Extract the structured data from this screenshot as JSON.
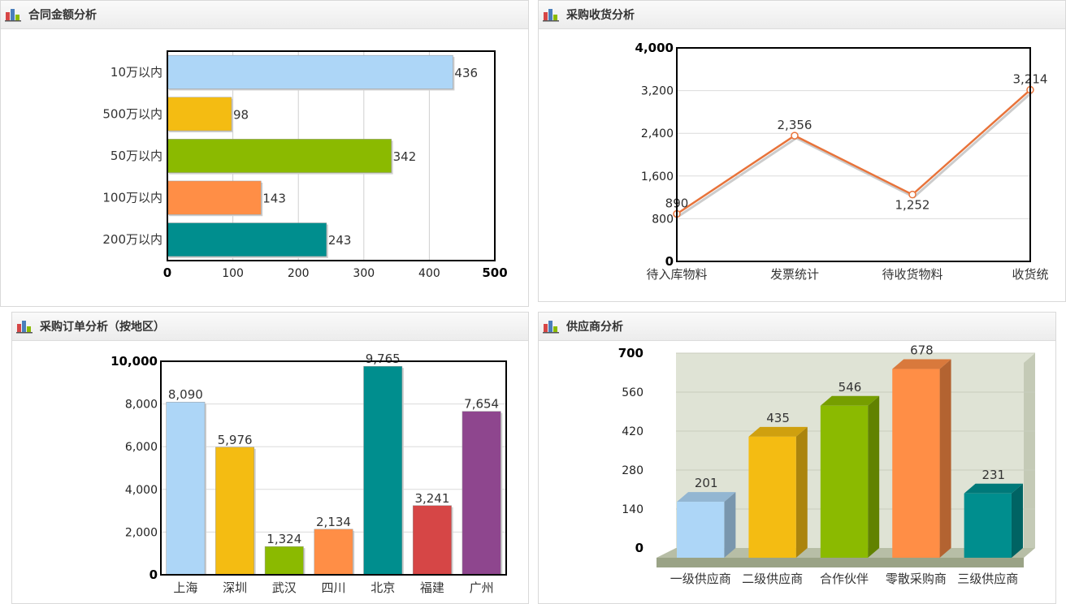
{
  "panels": {
    "p1": {
      "title": "合同金额分析"
    },
    "p2": {
      "title": "采购收货分析"
    },
    "p3": {
      "title": "采购订单分析（按地区）"
    },
    "p4": {
      "title": "供应商分析"
    }
  },
  "chart_data": [
    {
      "type": "bar",
      "orientation": "horizontal",
      "title": "合同金额分析",
      "categories": [
        "10万以内",
        "500万以内",
        "50万以内",
        "100万以内",
        "200万以内"
      ],
      "values": [
        436,
        98,
        342,
        143,
        243
      ],
      "colors": [
        "#add6f7",
        "#f4bc12",
        "#8bba00",
        "#ff8e46",
        "#008e8e"
      ],
      "xlim": [
        0,
        500
      ],
      "xticks": [
        0,
        100,
        200,
        300,
        400,
        500
      ],
      "grid": true
    },
    {
      "type": "line",
      "title": "采购收货分析",
      "categories": [
        "待入库物料",
        "发票统计",
        "待收货物料",
        "收货统"
      ],
      "values": [
        890,
        2356,
        1252,
        3214
      ],
      "value_labels": [
        "890",
        "2,356",
        "1,252",
        "3,214"
      ],
      "color": "#e8733a",
      "ylim": [
        0,
        4000
      ],
      "yticks": [
        0,
        800,
        1600,
        2400,
        3200,
        4000
      ],
      "grid": true
    },
    {
      "type": "bar",
      "title": "采购订单分析（按地区）",
      "categories": [
        "上海",
        "深圳",
        "武汉",
        "四川",
        "北京",
        "福建",
        "广州"
      ],
      "values": [
        8090,
        5976,
        1324,
        2134,
        9765,
        3241,
        7654
      ],
      "colors": [
        "#add6f7",
        "#f4bc12",
        "#8bba00",
        "#ff8e46",
        "#008e8e",
        "#d64646",
        "#8e468e"
      ],
      "ylim": [
        0,
        10000
      ],
      "yticks": [
        0,
        2000,
        4000,
        6000,
        8000,
        10000
      ],
      "grid": true
    },
    {
      "type": "bar",
      "style": "3d",
      "title": "供应商分析",
      "categories": [
        "一级供应商",
        "二级供应商",
        "合作伙伴",
        "零散采购商",
        "三级供应商"
      ],
      "values": [
        201,
        435,
        546,
        678,
        231
      ],
      "colors": [
        "#add6f7",
        "#f4bc12",
        "#8bba00",
        "#ff8e46",
        "#008e8e"
      ],
      "ylim": [
        0,
        700
      ],
      "yticks": [
        0,
        140,
        280,
        420,
        560,
        700
      ],
      "grid": true
    }
  ]
}
